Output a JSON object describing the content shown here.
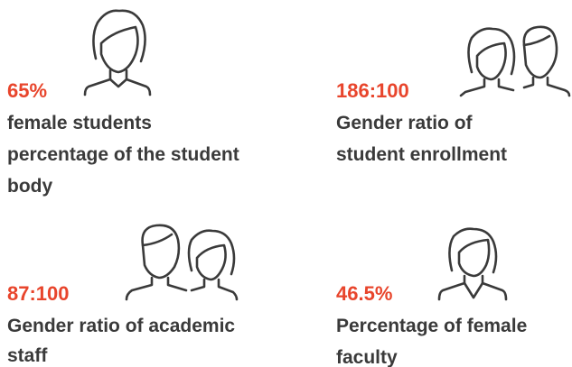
{
  "stats": [
    {
      "value": "65%",
      "lines": [
        "female students",
        "percentage of the student",
        "body"
      ]
    },
    {
      "value": "186:100",
      "lines": [
        "Gender ratio of",
        "student enrollment"
      ]
    },
    {
      "value": "87:100",
      "lines": [
        "Gender ratio of academic",
        "staff"
      ]
    },
    {
      "value": "46.5%",
      "lines": [
        "Percentage of female",
        "faculty"
      ]
    }
  ]
}
